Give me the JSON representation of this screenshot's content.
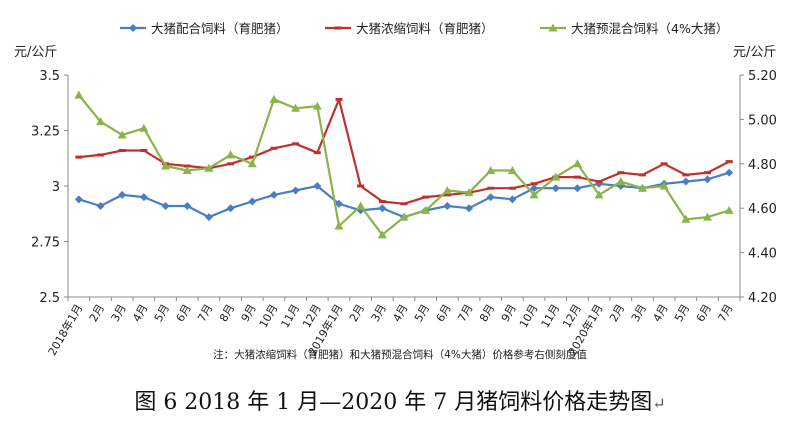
{
  "caption": {
    "text": "图 6   2018 年 1 月—2020 年 7 月猪饲料价格走势图",
    "mark": "↵"
  },
  "chart_data": {
    "type": "line",
    "categories": [
      "2018年1月",
      "2月",
      "3月",
      "4月",
      "5月",
      "6月",
      "7月",
      "8月",
      "9月",
      "10月",
      "11月",
      "12月",
      "2019年1月",
      "2月",
      "3月",
      "4月",
      "5月",
      "6月",
      "7月",
      "8月",
      "9月",
      "10月",
      "11月",
      "12月",
      "2020年1月",
      "2月",
      "3月",
      "4月",
      "5月",
      "6月",
      "7月"
    ],
    "y_left": {
      "label": "元/公斤",
      "min": 2.5,
      "max": 3.5,
      "ticks": [
        2.5,
        2.75,
        3,
        3.25,
        3.5
      ],
      "tick_labels": [
        "2.5",
        "2.75",
        "3",
        "3.25",
        "3.5"
      ]
    },
    "y_right": {
      "label": "元/公斤",
      "min": 4.2,
      "max": 5.2,
      "ticks": [
        4.2,
        4.4,
        4.6,
        4.8,
        5.0,
        5.2
      ],
      "tick_labels": [
        "4.20",
        "4.40",
        "4.60",
        "4.80",
        "5.00",
        "5.20"
      ]
    },
    "note": "注：大猪浓缩饲料（育肥猪）和大猪预混合饲料（4%大猪）价格参考右侧刻度值",
    "grid": false,
    "legend_position": "top",
    "series": [
      {
        "name": "大猪配合饲料（育肥猪）",
        "axis": "left",
        "color": "#4A7EC2",
        "marker": "diamond",
        "values": [
          2.94,
          2.91,
          2.96,
          2.95,
          2.91,
          2.91,
          2.86,
          2.9,
          2.93,
          2.96,
          2.98,
          3.0,
          2.92,
          2.89,
          2.9,
          2.86,
          2.89,
          2.91,
          2.9,
          2.95,
          2.94,
          2.99,
          2.99,
          2.99,
          3.01,
          3.0,
          2.99,
          3.01,
          3.02,
          3.03,
          3.06
        ]
      },
      {
        "name": "大猪浓缩饲料（育肥猪）",
        "axis": "right",
        "color": "#C0312D",
        "marker": "dash",
        "values": [
          4.83,
          4.84,
          4.86,
          4.86,
          4.8,
          4.79,
          4.78,
          4.8,
          4.83,
          4.87,
          4.89,
          4.85,
          5.09,
          4.7,
          4.63,
          4.62,
          4.65,
          4.66,
          4.67,
          4.69,
          4.69,
          4.71,
          4.74,
          4.74,
          4.72,
          4.76,
          4.75,
          4.8,
          4.75,
          4.76,
          4.81
        ]
      },
      {
        "name": "大猪预混合饲料（4%大猪）",
        "axis": "right",
        "color": "#8AB44A",
        "marker": "triangle",
        "values": [
          5.11,
          4.99,
          4.93,
          4.96,
          4.79,
          4.77,
          4.78,
          4.84,
          4.8,
          5.09,
          5.05,
          5.06,
          4.52,
          4.61,
          4.48,
          4.56,
          4.59,
          4.68,
          4.67,
          4.77,
          4.77,
          4.66,
          4.74,
          4.8,
          4.66,
          4.72,
          4.69,
          4.7,
          4.55,
          4.56,
          4.59
        ]
      }
    ]
  }
}
